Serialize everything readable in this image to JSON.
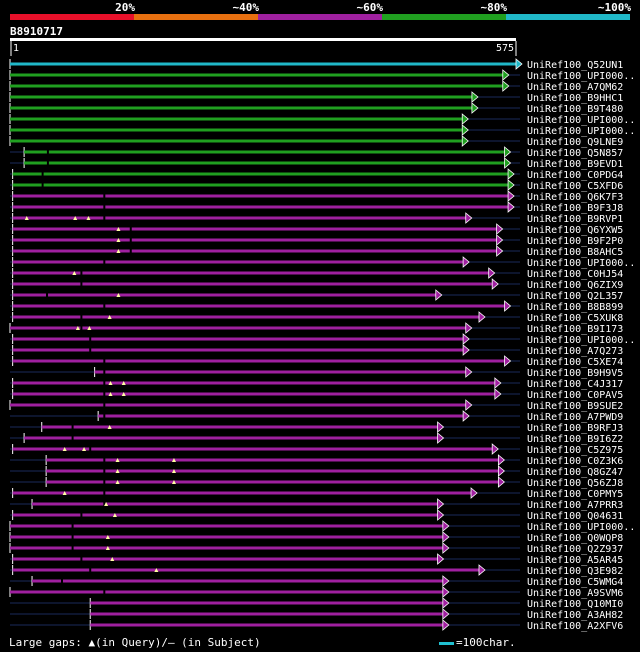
{
  "identity_legend": [
    {
      "label": "",
      "color": "#e8102a"
    },
    {
      "label": "20%",
      "color": "#e87010"
    },
    {
      "label": "~40%",
      "color": "#a020a0"
    },
    {
      "label": "~60%",
      "color": "#20a020"
    },
    {
      "label": "~80%",
      "color": "#20b8c8"
    },
    {
      "label": "~100%",
      "color": ""
    }
  ],
  "query": {
    "name": "B8910717",
    "start_label": "1",
    "end_label": "575",
    "length": 575
  },
  "chart_data": {
    "type": "alignment",
    "x_range": [
      1,
      575
    ],
    "hits": [
      {
        "name": "UniRef100_Q52UN1",
        "start": 1,
        "end": 575,
        "identity": "~100%",
        "color": "#20b8c8",
        "tick": null,
        "gap_marks": []
      },
      {
        "name": "UniRef100_UPI000..",
        "start": 1,
        "end": 560,
        "identity": "~80%",
        "color": "#20a020",
        "tick": null,
        "gap_marks": []
      },
      {
        "name": "UniRef100_A7QM62",
        "start": 1,
        "end": 560,
        "identity": "~80%",
        "color": "#20a020",
        "tick": null,
        "gap_marks": []
      },
      {
        "name": "UniRef100_B9HHC1",
        "start": 1,
        "end": 525,
        "identity": "~80%",
        "color": "#20a020",
        "tick": null,
        "gap_marks": []
      },
      {
        "name": "UniRef100_B9T480",
        "start": 1,
        "end": 525,
        "identity": "~80%",
        "color": "#20a020",
        "tick": null,
        "gap_marks": []
      },
      {
        "name": "UniRef100_UPI000..",
        "start": 1,
        "end": 514,
        "identity": "~80%",
        "color": "#20a020",
        "tick": null,
        "gap_marks": []
      },
      {
        "name": "UniRef100_UPI000..",
        "start": 1,
        "end": 514,
        "identity": "~80%",
        "color": "#20a020",
        "tick": null,
        "gap_marks": []
      },
      {
        "name": "UniRef100_Q9LNE9",
        "start": 1,
        "end": 514,
        "identity": "~80%",
        "color": "#20a020",
        "tick": null,
        "gap_marks": []
      },
      {
        "name": "UniRef100_Q5N857",
        "start": 17,
        "end": 562,
        "identity": "~80%",
        "color": "#20a020",
        "tick": 44,
        "gap_marks": []
      },
      {
        "name": "UniRef100_B9EVD1",
        "start": 17,
        "end": 562,
        "identity": "~80%",
        "color": "#20a020",
        "tick": 44,
        "gap_marks": []
      },
      {
        "name": "UniRef100_C0PDG4",
        "start": 4,
        "end": 566,
        "identity": "~80%",
        "color": "#20a020",
        "tick": 38,
        "gap_marks": []
      },
      {
        "name": "UniRef100_C5XFD6",
        "start": 4,
        "end": 566,
        "identity": "~80%",
        "color": "#20a020",
        "tick": 38,
        "gap_marks": []
      },
      {
        "name": "UniRef100_Q6K7F3",
        "start": 4,
        "end": 566,
        "identity": "~60%",
        "color": "#a020a0",
        "tick": 108,
        "gap_marks": []
      },
      {
        "name": "UniRef100_B9F3J8",
        "start": 4,
        "end": 566,
        "identity": "~60%",
        "color": "#a020a0",
        "tick": 108,
        "gap_marks": []
      },
      {
        "name": "UniRef100_B9RVP1",
        "start": 4,
        "end": 518,
        "identity": "~60%",
        "color": "#a020a0",
        "tick": 108,
        "gap_marks": [
          20,
          75,
          90
        ]
      },
      {
        "name": "UniRef100_Q6YXW5",
        "start": 4,
        "end": 553,
        "identity": "~60%",
        "color": "#a020a0",
        "tick": 138,
        "gap_marks": [
          124
        ]
      },
      {
        "name": "UniRef100_B9F2P0",
        "start": 4,
        "end": 553,
        "identity": "~60%",
        "color": "#a020a0",
        "tick": 138,
        "gap_marks": [
          124
        ]
      },
      {
        "name": "UniRef100_B8AHC5",
        "start": 4,
        "end": 553,
        "identity": "~60%",
        "color": "#a020a0",
        "tick": 138,
        "gap_marks": [
          124
        ]
      },
      {
        "name": "UniRef100_UPI000..",
        "start": 4,
        "end": 515,
        "identity": "~60%",
        "color": "#a020a0",
        "tick": 108,
        "gap_marks": []
      },
      {
        "name": "UniRef100_C0HJ54",
        "start": 4,
        "end": 544,
        "identity": "~60%",
        "color": "#a020a0",
        "tick": 82,
        "gap_marks": [
          74
        ]
      },
      {
        "name": "UniRef100_Q6ZIX9",
        "start": 4,
        "end": 548,
        "identity": "~60%",
        "color": "#a020a0",
        "tick": 82,
        "gap_marks": []
      },
      {
        "name": "UniRef100_Q2L357",
        "start": 4,
        "end": 484,
        "identity": "~60%",
        "color": "#a020a0",
        "tick": 43,
        "gap_marks": [
          124
        ]
      },
      {
        "name": "UniRef100_B8B899",
        "start": 4,
        "end": 562,
        "identity": "~60%",
        "color": "#a020a0",
        "tick": 108,
        "gap_marks": []
      },
      {
        "name": "UniRef100_C5XUK8",
        "start": 4,
        "end": 533,
        "identity": "~60%",
        "color": "#a020a0",
        "tick": 82,
        "gap_marks": [
          114
        ]
      },
      {
        "name": "UniRef100_B9I173",
        "start": 1,
        "end": 518,
        "identity": "~60%",
        "color": "#a020a0",
        "tick": 82,
        "gap_marks": [
          78,
          91
        ]
      },
      {
        "name": "UniRef100_UPI000..",
        "start": 4,
        "end": 515,
        "identity": "~60%",
        "color": "#a020a0",
        "tick": 92,
        "gap_marks": []
      },
      {
        "name": "UniRef100_A7Q273",
        "start": 4,
        "end": 515,
        "identity": "~60%",
        "color": "#a020a0",
        "tick": 92,
        "gap_marks": []
      },
      {
        "name": "UniRef100_C5XE74",
        "start": 4,
        "end": 562,
        "identity": "~60%",
        "color": "#a020a0",
        "tick": 108,
        "gap_marks": []
      },
      {
        "name": "UniRef100_B9H9V5",
        "start": 97,
        "end": 518,
        "identity": "~60%",
        "color": "#a020a0",
        "tick": 108,
        "gap_marks": []
      },
      {
        "name": "UniRef100_C4J317",
        "start": 4,
        "end": 551,
        "identity": "~60%",
        "color": "#a020a0",
        "tick": 108,
        "gap_marks": [
          115,
          130
        ]
      },
      {
        "name": "UniRef100_C0PAV5",
        "start": 4,
        "end": 551,
        "identity": "~60%",
        "color": "#a020a0",
        "tick": 108,
        "gap_marks": [
          115,
          130
        ]
      },
      {
        "name": "UniRef100_B9SUE2",
        "start": 1,
        "end": 518,
        "identity": "~60%",
        "color": "#a020a0",
        "tick": 108,
        "gap_marks": []
      },
      {
        "name": "UniRef100_A7PWD9",
        "start": 101,
        "end": 515,
        "identity": "~60%",
        "color": "#a020a0",
        "tick": 108,
        "gap_marks": []
      },
      {
        "name": "UniRef100_B9RFJ3",
        "start": 37,
        "end": 486,
        "identity": "~60%",
        "color": "#a020a0",
        "tick": 72,
        "gap_marks": [
          114
        ]
      },
      {
        "name": "UniRef100_B9I6Z2",
        "start": 17,
        "end": 486,
        "identity": "~60%",
        "color": "#a020a0",
        "tick": 72,
        "gap_marks": []
      },
      {
        "name": "UniRef100_C5Z975",
        "start": 4,
        "end": 548,
        "identity": "~60%",
        "color": "#a020a0",
        "tick": 92,
        "gap_marks": [
          63,
          85
        ]
      },
      {
        "name": "UniRef100_C0Z3K6",
        "start": 42,
        "end": 555,
        "identity": "~60%",
        "color": "#a020a0",
        "tick": 108,
        "gap_marks": [
          123,
          187
        ]
      },
      {
        "name": "UniRef100_Q8GZ47",
        "start": 42,
        "end": 555,
        "identity": "~60%",
        "color": "#a020a0",
        "tick": 108,
        "gap_marks": [
          123,
          187
        ]
      },
      {
        "name": "UniRef100_Q56ZJ8",
        "start": 42,
        "end": 555,
        "identity": "~60%",
        "color": "#a020a0",
        "tick": 108,
        "gap_marks": [
          123,
          187
        ]
      },
      {
        "name": "UniRef100_C0PMY5",
        "start": 4,
        "end": 524,
        "identity": "~60%",
        "color": "#a020a0",
        "tick": 108,
        "gap_marks": [
          63
        ]
      },
      {
        "name": "UniRef100_A7PRR3",
        "start": 26,
        "end": 486,
        "identity": "~60%",
        "color": "#a020a0",
        "tick": 108,
        "gap_marks": [
          110
        ]
      },
      {
        "name": "UniRef100_Q04631",
        "start": 4,
        "end": 486,
        "identity": "~60%",
        "color": "#a020a0",
        "tick": 82,
        "gap_marks": [
          120
        ]
      },
      {
        "name": "UniRef100_UPI000..",
        "start": 1,
        "end": 492,
        "identity": "~60%",
        "color": "#a020a0",
        "tick": 72,
        "gap_marks": []
      },
      {
        "name": "UniRef100_Q0WQP8",
        "start": 1,
        "end": 492,
        "identity": "~60%",
        "color": "#a020a0",
        "tick": 72,
        "gap_marks": [
          112
        ]
      },
      {
        "name": "UniRef100_Q2Z937",
        "start": 1,
        "end": 492,
        "identity": "~60%",
        "color": "#a020a0",
        "tick": 72,
        "gap_marks": [
          112
        ]
      },
      {
        "name": "UniRef100_A5AR45",
        "start": 4,
        "end": 486,
        "identity": "~60%",
        "color": "#a020a0",
        "tick": 82,
        "gap_marks": [
          117
        ]
      },
      {
        "name": "UniRef100_Q3E982",
        "start": 4,
        "end": 533,
        "identity": "~60%",
        "color": "#a020a0",
        "tick": 92,
        "gap_marks": [
          167
        ]
      },
      {
        "name": "UniRef100_C5WMG4",
        "start": 26,
        "end": 492,
        "identity": "~60%",
        "color": "#a020a0",
        "tick": 60,
        "gap_marks": []
      },
      {
        "name": "UniRef100_A9SVM6",
        "start": 1,
        "end": 492,
        "identity": "~60%",
        "color": "#a020a0",
        "tick": 108,
        "gap_marks": []
      },
      {
        "name": "UniRef100_Q10MI0",
        "start": 92,
        "end": 492,
        "identity": "~60%",
        "color": "#a020a0",
        "tick": null,
        "gap_marks": []
      },
      {
        "name": "UniRef100_A3AH82",
        "start": 92,
        "end": 492,
        "identity": "~60%",
        "color": "#a020a0",
        "tick": null,
        "gap_marks": []
      },
      {
        "name": "UniRef100_A2XFV6",
        "start": 92,
        "end": 492,
        "identity": "~60%",
        "color": "#a020a0",
        "tick": null,
        "gap_marks": []
      }
    ]
  },
  "footer": {
    "gaps_text": "Large gaps: ▲(in Query)/– (in Subject)",
    "scale_text": "=100char."
  }
}
